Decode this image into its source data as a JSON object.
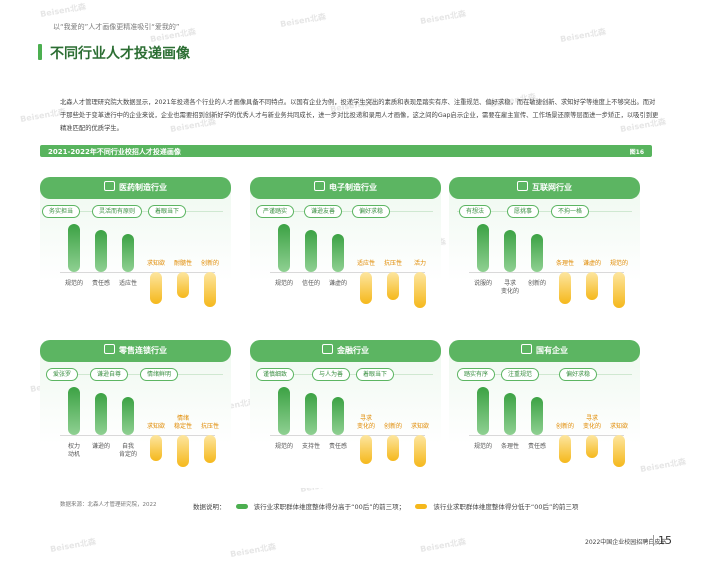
{
  "header": {
    "subtitle": "以“我爱的”人才画像更精准吸引“爱我的”",
    "title": "不同行业人才投递画像"
  },
  "intro": "北森人才管理研究院大数据显示，2021年投递各个行业的人才画像具备不同特点。以国有企业为例，投递学生突出的素质和表现是踏实有序、注重规范、偏好求稳，而在敏捷创新、求知好学等维度上不够突出。而对于那些处于变革进行中的企业来说，企业也需要招到创新好学的优秀人才与新业务共同成长，进一步对比投递和录用人才画像，这之间的Gap启示企业，需要在雇主宣传、工作场景还原等层面进一步矫正，以吸引到更精准匹配的优质学生。",
  "section": {
    "title": "2021-2022年不同行业校招人才投递画像",
    "figure_label": "图16"
  },
  "panels": [
    {
      "title": "医药制造行业",
      "icon": "pill-icon",
      "tags": [
        "务实担当",
        "灵活而有原则",
        "着眼当下"
      ],
      "bars": [
        {
          "label": "规范的",
          "value": 0.82,
          "type": "high"
        },
        {
          "label": "责任感",
          "value": 0.72,
          "type": "high"
        },
        {
          "label": "适应性",
          "value": 0.66,
          "type": "high"
        },
        {
          "label": "求知欲",
          "value": 0.55,
          "type": "low"
        },
        {
          "label": "耐髓性",
          "value": 0.45,
          "type": "low"
        },
        {
          "label": "创新的",
          "value": 0.6,
          "type": "low"
        }
      ]
    },
    {
      "title": "电子制造行业",
      "icon": "chip-icon",
      "tags": [
        "严谨踏实",
        "谦逊友善",
        "偏好求稳"
      ],
      "bars": [
        {
          "label": "规范的",
          "value": 0.82,
          "type": "high"
        },
        {
          "label": "信任的",
          "value": 0.72,
          "type": "high"
        },
        {
          "label": "谦虚的",
          "value": 0.66,
          "type": "high"
        },
        {
          "label": "适应性",
          "value": 0.55,
          "type": "low"
        },
        {
          "label": "抗压性",
          "value": 0.48,
          "type": "low"
        },
        {
          "label": "活力",
          "value": 0.62,
          "type": "low"
        }
      ]
    },
    {
      "title": "互联网行业",
      "icon": "monitor-icon",
      "tags": [
        "有想法",
        "愿挑事",
        "不拘一格"
      ],
      "bars": [
        {
          "label": "说服的",
          "value": 0.82,
          "type": "high"
        },
        {
          "label": "寻求\n变化的",
          "value": 0.72,
          "type": "high"
        },
        {
          "label": "创新的",
          "value": 0.66,
          "type": "high"
        },
        {
          "label": "条理性",
          "value": 0.55,
          "type": "low"
        },
        {
          "label": "谦虚的",
          "value": 0.48,
          "type": "low"
        },
        {
          "label": "规范的",
          "value": 0.62,
          "type": "low"
        }
      ]
    },
    {
      "title": "零售连锁行业",
      "icon": "store-icon",
      "tags": [
        "爱张罗",
        "谦逊自尊",
        "情绪鲜明"
      ],
      "bars": [
        {
          "label": "权力\n动机",
          "value": 0.82,
          "type": "high"
        },
        {
          "label": "谦逊的",
          "value": 0.72,
          "type": "high"
        },
        {
          "label": "自我\n肯定的",
          "value": 0.66,
          "type": "high"
        },
        {
          "label": "求知欲",
          "value": 0.45,
          "type": "low"
        },
        {
          "label": "情绪\n稳定性",
          "value": 0.55,
          "type": "low"
        },
        {
          "label": "抗压性",
          "value": 0.48,
          "type": "low"
        }
      ]
    },
    {
      "title": "金融行业",
      "icon": "bank-icon",
      "tags": [
        "谨慎细致",
        "与人为善",
        "着眼当下"
      ],
      "bars": [
        {
          "label": "规范的",
          "value": 0.82,
          "type": "high"
        },
        {
          "label": "支持性",
          "value": 0.72,
          "type": "high"
        },
        {
          "label": "责任感",
          "value": 0.66,
          "type": "high"
        },
        {
          "label": "寻求\n变化的",
          "value": 0.5,
          "type": "low"
        },
        {
          "label": "创新的",
          "value": 0.45,
          "type": "low"
        },
        {
          "label": "求知欲",
          "value": 0.55,
          "type": "low"
        }
      ]
    },
    {
      "title": "国有企业",
      "icon": "building-icon",
      "tags": [
        "踏实有序",
        "注重规范",
        "偏好求稳"
      ],
      "bars": [
        {
          "label": "规范的",
          "value": 0.82,
          "type": "high"
        },
        {
          "label": "条理性",
          "value": 0.72,
          "type": "high"
        },
        {
          "label": "责任感",
          "value": 0.66,
          "type": "high"
        },
        {
          "label": "创新的",
          "value": 0.48,
          "type": "low"
        },
        {
          "label": "寻求\n变化的",
          "value": 0.4,
          "type": "low"
        },
        {
          "label": "求知欲",
          "value": 0.55,
          "type": "low"
        }
      ]
    }
  ],
  "source": "数据来源：北森人才管理研究院，2022",
  "legend": {
    "prefix": "数据说明：",
    "high": "该行业求职群体维度整体得分高于“00后”的前三项；",
    "low": "该行业求职群体维度整体得分低于“00后”的前三项"
  },
  "footer": {
    "report": "2022中国企业校园招聘白皮书",
    "page": "15"
  },
  "watermark": "Beisen北森",
  "colors": {
    "accent": "#5cb562",
    "high": "#3ca244",
    "low": "#f5b81c"
  }
}
